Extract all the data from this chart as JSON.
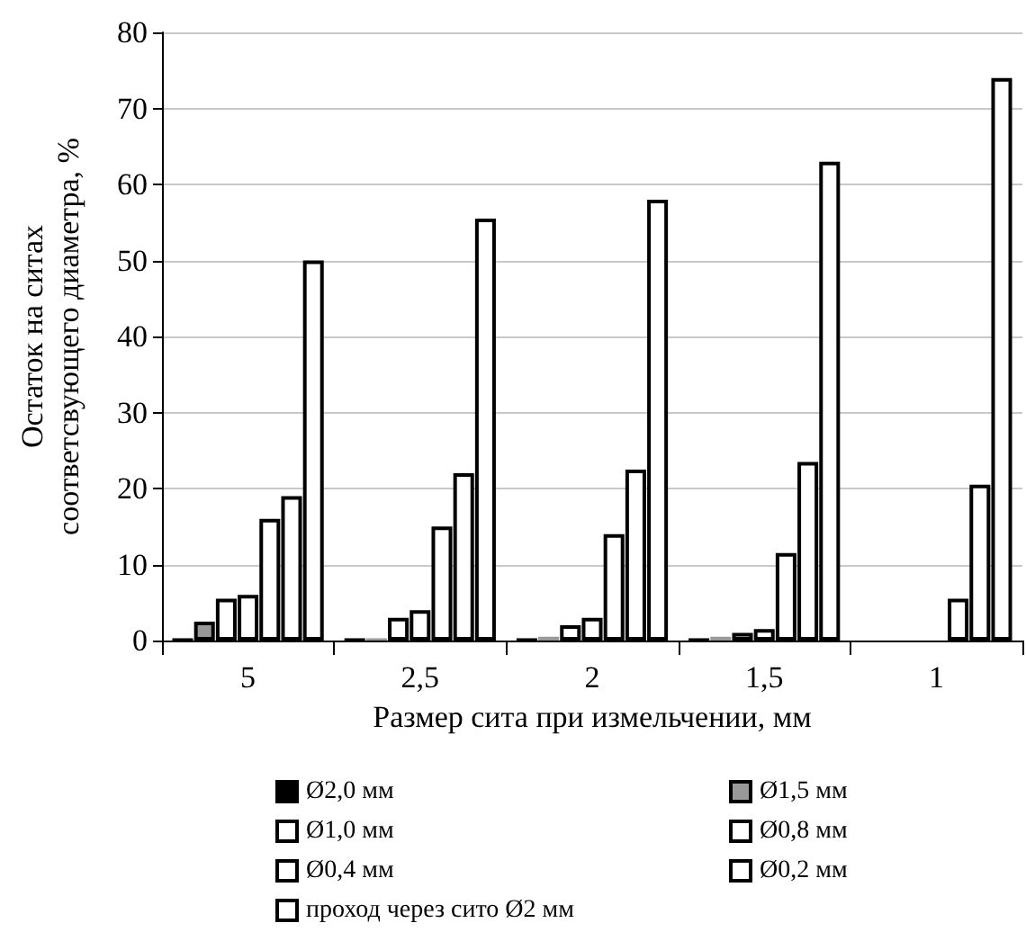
{
  "chart_data": {
    "type": "bar",
    "xlabel": "Размер сита при измельчении, мм",
    "ylabel": "Остаток на ситах\nсоответсвующего диаметра, %",
    "categories": [
      "5",
      "2,5",
      "2",
      "1,5",
      "1"
    ],
    "series": [
      {
        "name": "Ø2,0 мм",
        "color": "#000000",
        "values": [
          0.3,
          0.3,
          0.3,
          0.3,
          0
        ]
      },
      {
        "name": "Ø1,5 мм",
        "color": "#999999",
        "values": [
          2.5,
          0.3,
          0.5,
          0.5,
          0
        ]
      },
      {
        "name": "Ø1,0 мм",
        "color": "#ffffff",
        "values": [
          5.5,
          3,
          2,
          1,
          0
        ]
      },
      {
        "name": "Ø0,8 мм",
        "color": "#ffffff",
        "values": [
          6,
          4,
          3,
          1.5,
          0
        ]
      },
      {
        "name": "Ø0,4 мм",
        "color": "#ffffff",
        "values": [
          16,
          15,
          14,
          11.5,
          5.5
        ]
      },
      {
        "name": "Ø0,2 мм",
        "color": "#ffffff",
        "values": [
          19,
          22,
          22.5,
          23.5,
          20.5
        ]
      },
      {
        "name": "проход через сито Ø2 мм",
        "color": "#ffffff",
        "values": [
          50,
          55.5,
          58,
          63,
          74
        ]
      }
    ],
    "ylim": [
      0,
      80
    ],
    "yticks": [
      0,
      10,
      20,
      30,
      40,
      50,
      60,
      70,
      80
    ],
    "grid": "y",
    "legend": "bottom"
  }
}
